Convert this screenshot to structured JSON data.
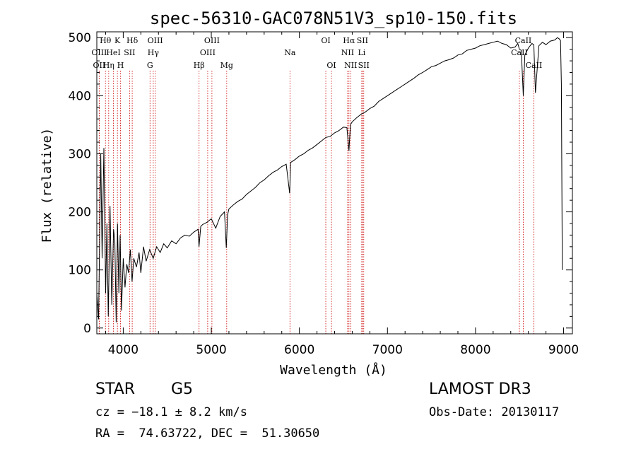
{
  "chart_data": {
    "type": "line",
    "title": "spec-56310-GAC078N51V3_sp10-150.fits",
    "xlabel": "Wavelength (Å)",
    "ylabel": "Flux (relative)",
    "xlim": [
      3700,
      9100
    ],
    "ylim": [
      -10,
      510
    ],
    "xticks": [
      4000,
      5000,
      6000,
      7000,
      8000,
      9000
    ],
    "yticks": [
      0,
      100,
      200,
      300,
      400,
      500
    ],
    "grid": false,
    "colors": {
      "line": "#000000",
      "marker": "#cc0000"
    },
    "series": [
      {
        "name": "flux",
        "x": [
          3700,
          3720,
          3745,
          3760,
          3780,
          3800,
          3815,
          3830,
          3850,
          3870,
          3890,
          3905,
          3920,
          3935,
          3950,
          3965,
          3980,
          4000,
          4020,
          4040,
          4060,
          4080,
          4100,
          4120,
          4150,
          4180,
          4200,
          4230,
          4260,
          4300,
          4340,
          4380,
          4420,
          4460,
          4500,
          4550,
          4600,
          4650,
          4700,
          4750,
          4800,
          4850,
          4860,
          4880,
          4900,
          4950,
          5000,
          5050,
          5100,
          5150,
          5170,
          5185,
          5200,
          5250,
          5300,
          5350,
          5400,
          5450,
          5500,
          5550,
          5600,
          5650,
          5700,
          5750,
          5800,
          5850,
          5890,
          5900,
          5950,
          6000,
          6050,
          6100,
          6150,
          6200,
          6250,
          6300,
          6350,
          6400,
          6450,
          6500,
          6540,
          6563,
          6580,
          6600,
          6650,
          6700,
          6750,
          6800,
          6850,
          6900,
          6950,
          7000,
          7050,
          7100,
          7150,
          7200,
          7250,
          7300,
          7350,
          7400,
          7450,
          7500,
          7550,
          7600,
          7650,
          7700,
          7750,
          7800,
          7850,
          7900,
          7950,
          8000,
          8050,
          8100,
          8150,
          8200,
          8250,
          8300,
          8350,
          8400,
          8450,
          8480,
          8498,
          8520,
          8542,
          8560,
          8600,
          8640,
          8662,
          8680,
          8720,
          8760,
          8800,
          8850,
          8900,
          8930,
          8950,
          8965,
          8975,
          8985
        ],
        "y": [
          60,
          15,
          300,
          120,
          310,
          60,
          180,
          20,
          210,
          40,
          170,
          150,
          10,
          180,
          60,
          160,
          30,
          120,
          70,
          110,
          95,
          135,
          80,
          120,
          105,
          130,
          95,
          140,
          115,
          135,
          120,
          140,
          130,
          145,
          138,
          150,
          145,
          155,
          160,
          158,
          165,
          170,
          140,
          175,
          178,
          182,
          188,
          172,
          192,
          200,
          138,
          195,
          205,
          212,
          218,
          222,
          230,
          236,
          242,
          250,
          255,
          262,
          268,
          272,
          278,
          282,
          232,
          285,
          290,
          296,
          300,
          306,
          310,
          316,
          322,
          328,
          330,
          336,
          340,
          346,
          345,
          305,
          350,
          355,
          362,
          368,
          372,
          378,
          382,
          390,
          395,
          400,
          405,
          410,
          415,
          420,
          425,
          430,
          436,
          440,
          445,
          450,
          452,
          456,
          460,
          462,
          465,
          470,
          472,
          478,
          480,
          482,
          486,
          488,
          490,
          492,
          494,
          490,
          488,
          482,
          484,
          490,
          480,
          478,
          400,
          470,
          482,
          490,
          488,
          405,
          486,
          492,
          488,
          494,
          496,
          500,
          498,
          495,
          420,
          100
        ]
      }
    ],
    "lines": [
      {
        "label": "OII",
        "x": 3727,
        "row": 2
      },
      {
        "label": "OIII",
        "x": 3727,
        "row": 1
      },
      {
        "label": "Hθ",
        "x": 3798,
        "row": 0
      },
      {
        "label": "Hη",
        "x": 3835,
        "row": 2
      },
      {
        "label": "HeI",
        "x": 3889,
        "row": 1
      },
      {
        "label": "K",
        "x": 3934,
        "row": 0
      },
      {
        "label": "H",
        "x": 3969,
        "row": 2
      },
      {
        "label": "SII",
        "x": 4072,
        "row": 1
      },
      {
        "label": "Hδ",
        "x": 4102,
        "row": 0
      },
      {
        "label": "G",
        "x": 4304,
        "row": 2
      },
      {
        "label": "Hγ",
        "x": 4341,
        "row": 1
      },
      {
        "label": "OIII",
        "x": 4363,
        "row": 0
      },
      {
        "label": "Hβ",
        "x": 4861,
        "row": 2
      },
      {
        "label": "OIII",
        "x": 4959,
        "row": 1
      },
      {
        "label": "OIII",
        "x": 5007,
        "row": 0
      },
      {
        "label": "Mg",
        "x": 5175,
        "row": 2
      },
      {
        "label": "Na",
        "x": 5893,
        "row": 1
      },
      {
        "label": "OI",
        "x": 6300,
        "row": 0
      },
      {
        "label": "OI",
        "x": 6364,
        "row": 2
      },
      {
        "label": "NII",
        "x": 6548,
        "row": 1
      },
      {
        "label": "Hα",
        "x": 6563,
        "row": 0
      },
      {
        "label": "NII",
        "x": 6583,
        "row": 2
      },
      {
        "label": "Li",
        "x": 6708,
        "row": 1
      },
      {
        "label": "SII",
        "x": 6716,
        "row": 0
      },
      {
        "label": "SII",
        "x": 6731,
        "row": 2
      },
      {
        "label": "CaII",
        "x": 8498,
        "row": 1
      },
      {
        "label": "CaII",
        "x": 8542,
        "row": 0
      },
      {
        "label": "CaII",
        "x": 8662,
        "row": 2
      }
    ]
  },
  "info": {
    "class": "STAR",
    "subclass": "G5",
    "cz": "cz = −18.1 ± 8.2 km/s",
    "coords": "RA =  74.63722, DEC =  51.30650",
    "survey": "LAMOST DR3",
    "obs_date": "Obs-Date: 20130117"
  }
}
